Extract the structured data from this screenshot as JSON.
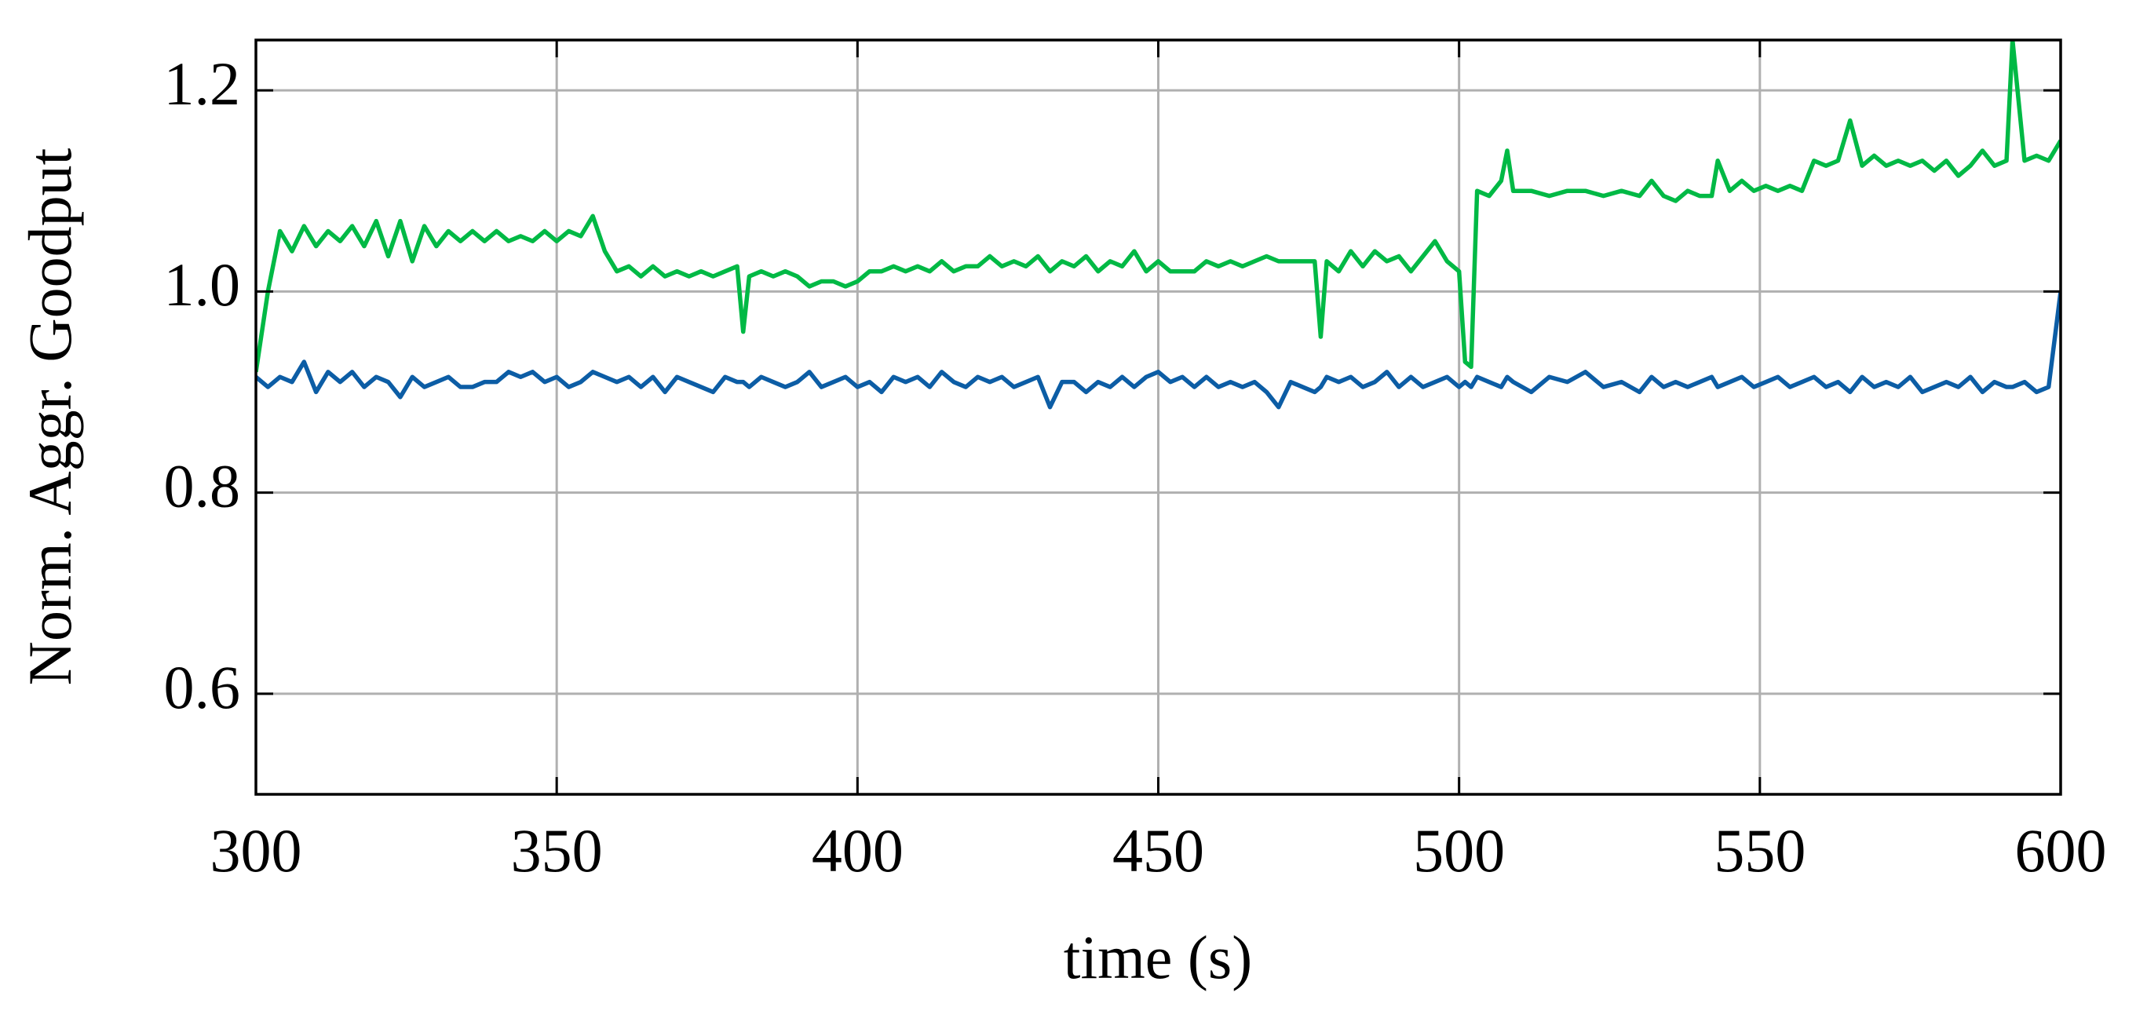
{
  "chart_data": {
    "type": "line",
    "xlabel": "time (s)",
    "ylabel": "Norm. Aggr. Goodput",
    "x": [
      300,
      302,
      304,
      306,
      308,
      310,
      312,
      314,
      316,
      318,
      320,
      322,
      324,
      326,
      328,
      330,
      332,
      334,
      336,
      338,
      340,
      342,
      344,
      346,
      348,
      350,
      352,
      354,
      356,
      358,
      360,
      362,
      364,
      366,
      368,
      370,
      372,
      374,
      376,
      378,
      380,
      381,
      382,
      384,
      386,
      388,
      390,
      392,
      394,
      396,
      398,
      400,
      402,
      404,
      406,
      408,
      410,
      412,
      414,
      416,
      418,
      420,
      422,
      424,
      426,
      428,
      430,
      432,
      434,
      436,
      438,
      440,
      442,
      444,
      446,
      448,
      450,
      452,
      454,
      456,
      458,
      460,
      462,
      464,
      466,
      468,
      470,
      472,
      474,
      476,
      477,
      478,
      480,
      482,
      484,
      486,
      488,
      490,
      492,
      494,
      496,
      498,
      500,
      501,
      502,
      503,
      505,
      507,
      508,
      509,
      512,
      515,
      518,
      521,
      524,
      527,
      530,
      532,
      534,
      536,
      538,
      540,
      542,
      543,
      545,
      547,
      549,
      551,
      553,
      555,
      557,
      559,
      561,
      563,
      565,
      567,
      569,
      571,
      573,
      575,
      577,
      579,
      581,
      583,
      585,
      587,
      589,
      591,
      592,
      594,
      596,
      598,
      600
    ],
    "series": [
      {
        "color": "#0c5da5",
        "values": [
          0.915,
          0.905,
          0.915,
          0.91,
          0.93,
          0.9,
          0.92,
          0.91,
          0.92,
          0.905,
          0.915,
          0.91,
          0.895,
          0.915,
          0.905,
          0.91,
          0.915,
          0.905,
          0.905,
          0.91,
          0.91,
          0.92,
          0.915,
          0.92,
          0.91,
          0.915,
          0.905,
          0.91,
          0.92,
          0.915,
          0.91,
          0.915,
          0.905,
          0.915,
          0.9,
          0.915,
          0.91,
          0.905,
          0.9,
          0.915,
          0.91,
          0.91,
          0.905,
          0.915,
          0.91,
          0.905,
          0.91,
          0.92,
          0.905,
          0.91,
          0.915,
          0.905,
          0.91,
          0.9,
          0.915,
          0.91,
          0.915,
          0.905,
          0.92,
          0.91,
          0.905,
          0.915,
          0.91,
          0.915,
          0.905,
          0.91,
          0.915,
          0.885,
          0.91,
          0.91,
          0.9,
          0.91,
          0.905,
          0.915,
          0.905,
          0.915,
          0.92,
          0.91,
          0.915,
          0.905,
          0.915,
          0.905,
          0.91,
          0.905,
          0.91,
          0.9,
          0.885,
          0.91,
          0.905,
          0.9,
          0.905,
          0.915,
          0.91,
          0.915,
          0.905,
          0.91,
          0.92,
          0.905,
          0.915,
          0.905,
          0.91,
          0.915,
          0.905,
          0.91,
          0.905,
          0.915,
          0.91,
          0.905,
          0.915,
          0.91,
          0.9,
          0.915,
          0.91,
          0.92,
          0.905,
          0.91,
          0.9,
          0.915,
          0.905,
          0.91,
          0.905,
          0.91,
          0.915,
          0.905,
          0.91,
          0.915,
          0.905,
          0.91,
          0.915,
          0.905,
          0.91,
          0.915,
          0.905,
          0.91,
          0.9,
          0.915,
          0.905,
          0.91,
          0.905,
          0.915,
          0.9,
          0.905,
          0.91,
          0.905,
          0.915,
          0.9,
          0.91,
          0.905,
          0.905,
          0.91,
          0.9,
          0.905,
          1.0
        ]
      },
      {
        "color": "#00b945",
        "values": [
          0.92,
          1.0,
          1.06,
          1.04,
          1.065,
          1.045,
          1.06,
          1.05,
          1.065,
          1.045,
          1.07,
          1.035,
          1.07,
          1.03,
          1.065,
          1.045,
          1.06,
          1.05,
          1.06,
          1.05,
          1.06,
          1.05,
          1.055,
          1.05,
          1.06,
          1.05,
          1.06,
          1.055,
          1.075,
          1.04,
          1.02,
          1.025,
          1.015,
          1.025,
          1.015,
          1.02,
          1.015,
          1.02,
          1.015,
          1.02,
          1.025,
          0.96,
          1.015,
          1.02,
          1.015,
          1.02,
          1.015,
          1.005,
          1.01,
          1.01,
          1.005,
          1.01,
          1.02,
          1.02,
          1.025,
          1.02,
          1.025,
          1.02,
          1.03,
          1.02,
          1.025,
          1.025,
          1.035,
          1.025,
          1.03,
          1.025,
          1.035,
          1.02,
          1.03,
          1.025,
          1.035,
          1.02,
          1.03,
          1.025,
          1.04,
          1.02,
          1.03,
          1.02,
          1.02,
          1.02,
          1.03,
          1.025,
          1.03,
          1.025,
          1.03,
          1.035,
          1.03,
          1.03,
          1.03,
          1.03,
          0.955,
          1.03,
          1.02,
          1.04,
          1.025,
          1.04,
          1.03,
          1.035,
          1.02,
          1.035,
          1.05,
          1.03,
          1.02,
          0.93,
          0.925,
          1.1,
          1.095,
          1.11,
          1.14,
          1.1,
          1.1,
          1.095,
          1.1,
          1.1,
          1.095,
          1.1,
          1.095,
          1.11,
          1.095,
          1.09,
          1.1,
          1.095,
          1.095,
          1.13,
          1.1,
          1.11,
          1.1,
          1.105,
          1.1,
          1.105,
          1.1,
          1.13,
          1.125,
          1.13,
          1.17,
          1.125,
          1.135,
          1.125,
          1.13,
          1.125,
          1.13,
          1.12,
          1.13,
          1.115,
          1.125,
          1.14,
          1.125,
          1.13,
          1.25,
          1.13,
          1.135,
          1.13,
          1.15
        ]
      }
    ],
    "xlim": [
      300,
      600
    ],
    "xticks": [
      300,
      350,
      400,
      450,
      500,
      550,
      600
    ],
    "ylim": [
      0.5,
      1.25
    ],
    "yticks": [
      0.6,
      0.8,
      {
        "value": 1,
        "label": "1.0"
      },
      1.2
    ],
    "grid": true
  }
}
